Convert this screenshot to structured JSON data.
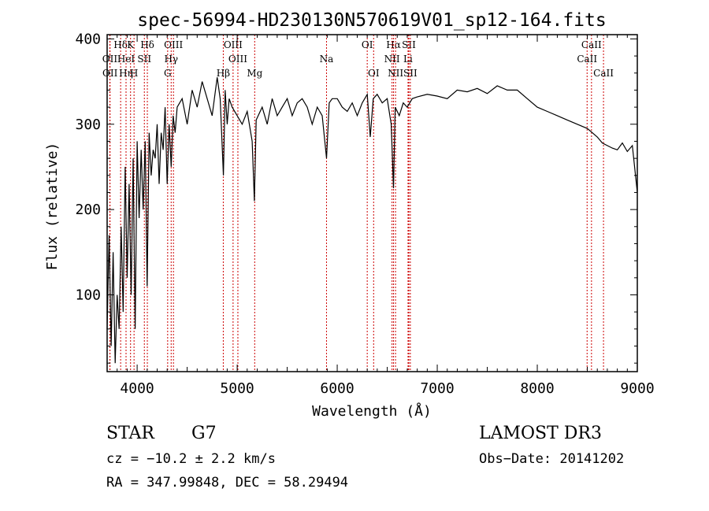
{
  "chart_data": {
    "type": "line",
    "title": "spec-56994-HD230130N570619V01_sp12-164.fits",
    "xlabel": "Wavelength (Å)",
    "ylabel": "Flux (relative)",
    "xlim": [
      3700,
      9000
    ],
    "ylim": [
      10,
      405
    ],
    "x_ticks": [
      4000,
      5000,
      6000,
      7000,
      8000,
      9000
    ],
    "y_ticks": [
      100,
      200,
      300,
      400
    ],
    "grid": false,
    "line_color": "#000000",
    "marker_color": "#cc0000",
    "series": [
      {
        "x": [
          3700,
          3720,
          3740,
          3760,
          3780,
          3800,
          3820,
          3840,
          3860,
          3880,
          3900,
          3920,
          3940,
          3960,
          3980,
          4000,
          4020,
          4040,
          4060,
          4080,
          4100,
          4120,
          4140,
          4160,
          4180,
          4200,
          4220,
          4240,
          4260,
          4280,
          4300,
          4320,
          4340,
          4360,
          4380,
          4400,
          4450,
          4500,
          4550,
          4600,
          4650,
          4700,
          4750,
          4800,
          4830,
          4862,
          4880,
          4900,
          4920,
          4950,
          5000,
          5050,
          5100,
          5150,
          5172,
          5190,
          5250,
          5300,
          5350,
          5400,
          5450,
          5500,
          5550,
          5600,
          5650,
          5700,
          5750,
          5800,
          5850,
          5893,
          5920,
          5950,
          6000,
          6050,
          6100,
          6150,
          6200,
          6250,
          6300,
          6330,
          6360,
          6400,
          6450,
          6500,
          6540,
          6563,
          6580,
          6620,
          6660,
          6700,
          6750,
          6800,
          6900,
          7000,
          7100,
          7200,
          7300,
          7400,
          7500,
          7600,
          7700,
          7800,
          7900,
          8000,
          8100,
          8200,
          8300,
          8400,
          8500,
          8550,
          8600,
          8650,
          8700,
          8750,
          8800,
          8850,
          8900,
          8950,
          9000
        ],
        "y": [
          60,
          170,
          40,
          150,
          20,
          100,
          60,
          180,
          80,
          250,
          120,
          230,
          100,
          260,
          60,
          280,
          190,
          270,
          200,
          280,
          110,
          290,
          240,
          270,
          260,
          300,
          230,
          290,
          270,
          320,
          230,
          300,
          250,
          310,
          290,
          320,
          330,
          300,
          340,
          320,
          350,
          330,
          310,
          355,
          330,
          240,
          340,
          300,
          330,
          320,
          310,
          300,
          315,
          280,
          210,
          305,
          320,
          300,
          330,
          310,
          320,
          330,
          310,
          325,
          330,
          320,
          300,
          320,
          310,
          260,
          325,
          330,
          330,
          320,
          315,
          325,
          310,
          325,
          335,
          285,
          330,
          335,
          325,
          330,
          300,
          225,
          320,
          310,
          325,
          320,
          330,
          332,
          335,
          333,
          330,
          340,
          338,
          342,
          336,
          345,
          340,
          340,
          330,
          320,
          315,
          310,
          305,
          300,
          295,
          290,
          285,
          278,
          275,
          272,
          270,
          278,
          268,
          275,
          220
        ]
      }
    ],
    "line_markers": [
      {
        "label": "Hδ",
        "wl": 3835,
        "row": 1
      },
      {
        "label": "K",
        "wl": 3934,
        "row": 1
      },
      {
        "label": "Hδ",
        "wl": 4102,
        "row": 1
      },
      {
        "label": "OIII",
        "wl": 4363,
        "row": 1
      },
      {
        "label": "OIII",
        "wl": 4959,
        "row": 1
      },
      {
        "label": "OI",
        "wl": 6300,
        "row": 1
      },
      {
        "label": "Hα",
        "wl": 6563,
        "row": 1
      },
      {
        "label": "SII",
        "wl": 6716,
        "row": 1
      },
      {
        "label": "CaII",
        "wl": 8542,
        "row": 1
      },
      {
        "label": "OII",
        "wl": 3727,
        "row": 2
      },
      {
        "label": "HeI",
        "wl": 3889,
        "row": 2
      },
      {
        "label": "SII",
        "wl": 4072,
        "row": 2
      },
      {
        "label": "Hγ",
        "wl": 4340,
        "row": 2
      },
      {
        "label": "OIII",
        "wl": 5007,
        "row": 2
      },
      {
        "label": "Na",
        "wl": 5893,
        "row": 2
      },
      {
        "label": "NII",
        "wl": 6548,
        "row": 2
      },
      {
        "label": "Li",
        "wl": 6708,
        "row": 2
      },
      {
        "label": "CaII",
        "wl": 8498,
        "row": 2
      },
      {
        "label": "OII",
        "wl": 3729,
        "row": 3
      },
      {
        "label": "Hη",
        "wl": 3889,
        "row": 3
      },
      {
        "label": "H",
        "wl": 3969,
        "row": 3
      },
      {
        "label": "G",
        "wl": 4305,
        "row": 3
      },
      {
        "label": "Hβ",
        "wl": 4861,
        "row": 3
      },
      {
        "label": "Mg",
        "wl": 5175,
        "row": 3
      },
      {
        "label": "OI",
        "wl": 6364,
        "row": 3
      },
      {
        "label": "NII",
        "wl": 6583,
        "row": 3
      },
      {
        "label": "SII",
        "wl": 6731,
        "row": 3
      },
      {
        "label": "CaII",
        "wl": 8662,
        "row": 3
      }
    ]
  },
  "info": {
    "object_class": "STAR",
    "subclass": "G7",
    "survey": "LAMOST DR3",
    "redshift": "cz = −10.2 ± 2.2 km/s",
    "obs_date": "Obs−Date: 20141202",
    "coords": "RA = 347.99848, DEC =  58.29494"
  }
}
